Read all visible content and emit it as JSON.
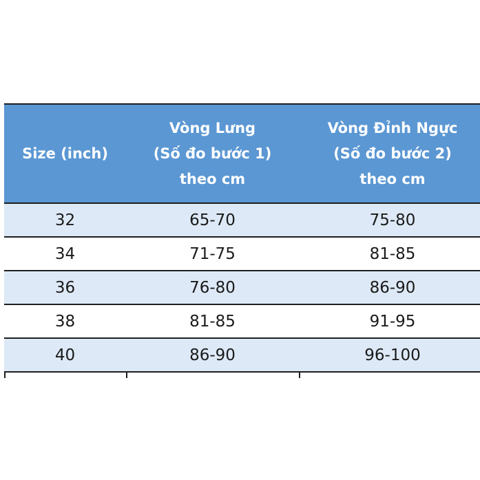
{
  "table": {
    "header": [
      [
        "Size (inch)"
      ],
      [
        "Vòng Lưng",
        "(Số đo bước 1)",
        "theo cm"
      ],
      [
        "Vòng Đỉnh Ngực",
        "(Số đo bước 2)",
        "theo cm"
      ]
    ],
    "rows": [
      [
        "32",
        "65-70",
        "75-80"
      ],
      [
        "34",
        "71-75",
        "81-85"
      ],
      [
        "36",
        "76-80",
        "86-90"
      ],
      [
        "38",
        "81-85",
        "91-95"
      ],
      [
        "40",
        "86-90",
        "96-100"
      ]
    ]
  }
}
